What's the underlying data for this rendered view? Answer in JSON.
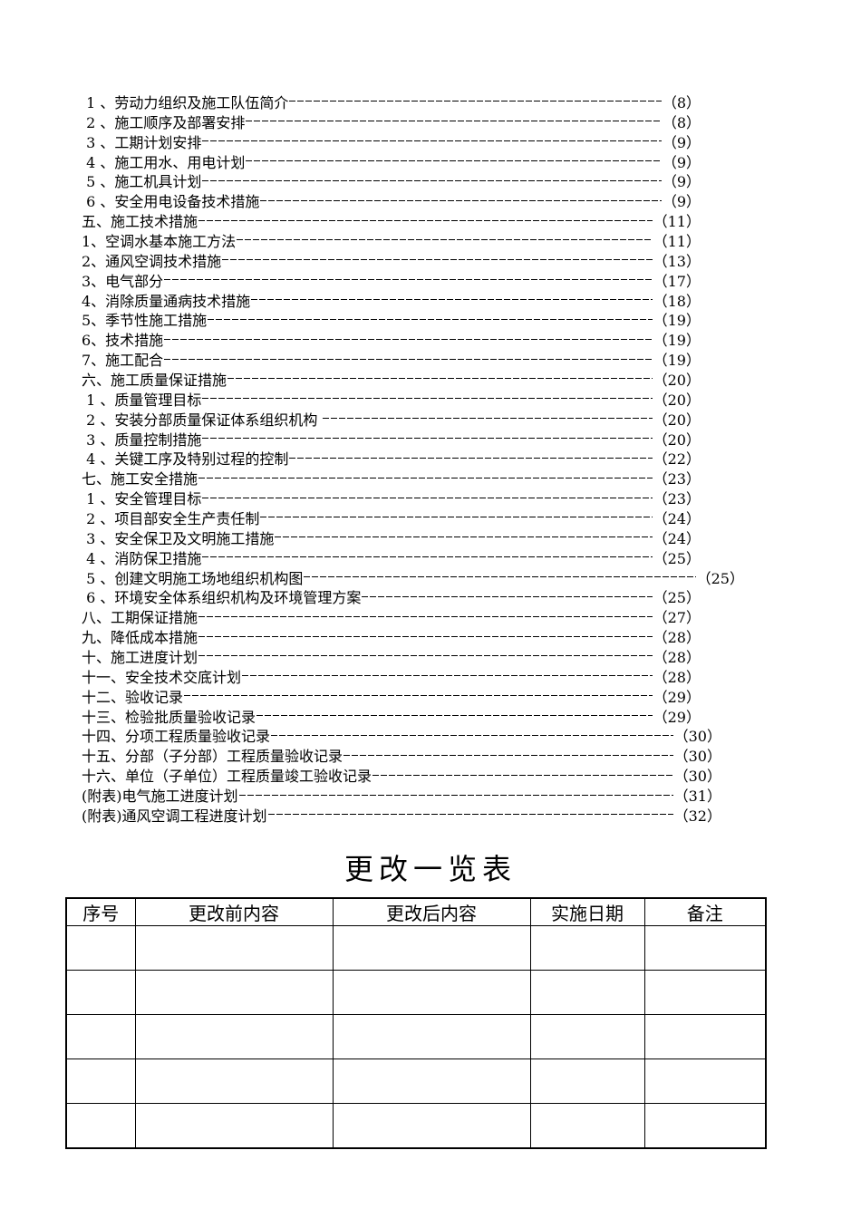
{
  "toc": [
    {
      "t": " 1 、劳动力组织及施工队伍简介",
      "p": "（8）"
    },
    {
      "t": " 2 、施工顺序及部署安排",
      "p": "（8）"
    },
    {
      "t": " 3 、工期计划安排",
      "p": "（9）"
    },
    {
      "t": " 4 、施工用水、用电计划",
      "p": "（9）"
    },
    {
      "t": " 5 、施工机具计划",
      "p": "（9）"
    },
    {
      "t": " 6 、安全用电设备技术措施",
      "p": "（9）"
    },
    {
      "t": "五、施工技术措施",
      "p": "（11）"
    },
    {
      "t": "1、空调水基本施工方法",
      "p": "（11）"
    },
    {
      "t": "2、通风空调技术措施",
      "p": "（13）"
    },
    {
      "t": "3、电气部分",
      "p": "（17）"
    },
    {
      "t": "4、消除质量通病技术措施",
      "p": "（18）"
    },
    {
      "t": "5、季节性施工措施",
      "p": "（19）"
    },
    {
      "t": "6、技术措施",
      "p": "（19）"
    },
    {
      "t": "7、施工配合",
      "p": "（19）"
    },
    {
      "t": "六、施工质量保证措施",
      "p": "（20）"
    },
    {
      "t": " 1 、质量管理目标",
      "p": "（20）"
    },
    {
      "t": " 2 、安装分部质量保证体系组织机构 ",
      "p": "（20）"
    },
    {
      "t": " 3 、质量控制措施",
      "p": "（20）"
    },
    {
      "t": " 4 、关键工序及特别过程的控制",
      "p": "（22）"
    },
    {
      "t": "七、施工安全措施",
      "p": "（23）"
    },
    {
      "t": " 1 、安全管理目标",
      "p": "（23）"
    },
    {
      "t": " 2 、项目部安全生产责任制",
      "p": "（24）"
    },
    {
      "t": " 3 、安全保卫及文明施工措施",
      "p": "（24）"
    },
    {
      "t": " 4 、消防保卫措施",
      "p": "（25）"
    },
    {
      "t": " 5 、创建文明施工场地组织机构图",
      "p": "（25）"
    },
    {
      "t": " 6 、环境安全体系组织机构及环境管理方案",
      "p": "（25）"
    },
    {
      "t": "八、工期保证措施",
      "p": "（27）"
    },
    {
      "t": "九、降低成本措施",
      "p": "（28）"
    },
    {
      "t": "十、施工进度计划",
      "p": "（28）"
    },
    {
      "t": "十一、安全技术交底计划",
      "p": "（28）"
    },
    {
      "t": "十二、验收记录",
      "p": "（29）"
    },
    {
      "t": "十三、检验批质量验收记录",
      "p": "（29）"
    },
    {
      "t": "十四、分项工程质量验收记录",
      "p": "（30）"
    },
    {
      "t": "十五、分部（子分部）工程质量验收记录",
      "p": "（30）"
    },
    {
      "t": "十六、单位（子单位）工程质量竣工验收记录",
      "p": "（30）"
    },
    {
      "t": "(附表)电气施工进度计划",
      "p": "（31）"
    },
    {
      "t": "(附表)通风空调工程进度计划",
      "p": "（32）"
    }
  ],
  "change_table": {
    "title": "更改一览表",
    "headers": [
      "序号",
      "更改前内容",
      "更改后内容",
      "实施日期",
      "备注"
    ],
    "empty_rows": 5
  }
}
